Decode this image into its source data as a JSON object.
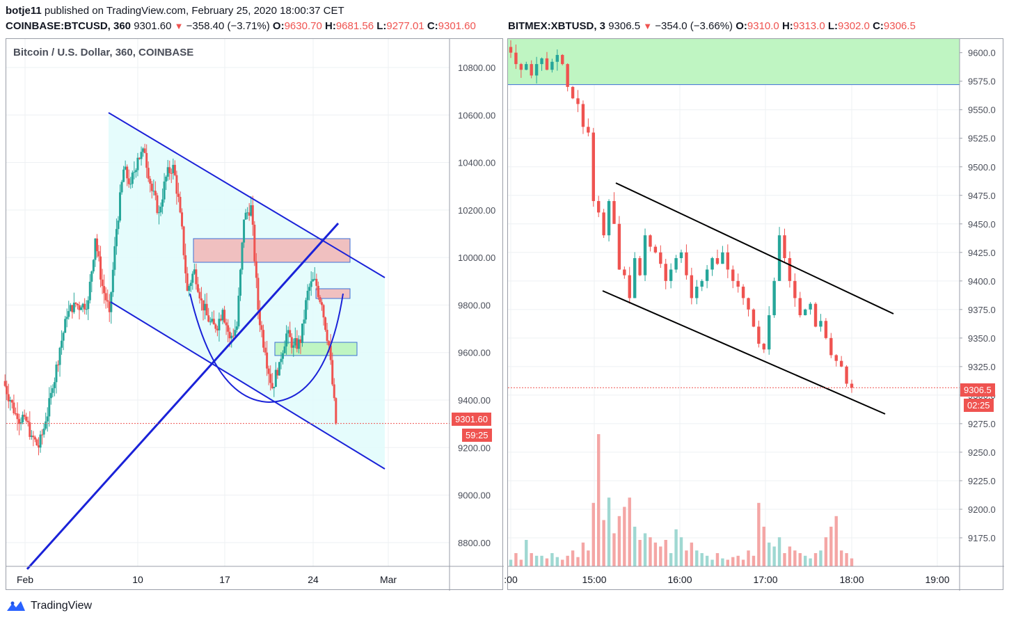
{
  "header": {
    "publisher": "botje11",
    "published_text": "published on TradingView.com, February 25, 2020 18:00:37 CET"
  },
  "left": {
    "symbol": "COINBASE:BTCUSD, 360",
    "last": "9301.60",
    "change": "−358.40 (−3.71%)",
    "o_label": "O:",
    "o": "9630.70",
    "h_label": "H:",
    "h": "9681.56",
    "l_label": "L:",
    "l": "9277.01",
    "c_label": "C:",
    "c": "9301.60",
    "title": "Bitcoin / U.S. Dollar, 360, COINBASE",
    "price_tag": "9301.60",
    "timer_tag": "59:25"
  },
  "right": {
    "symbol": "BITMEX:XBTUSD, 3",
    "last": "9306.5",
    "change": "−354.0 (−3.66%)",
    "o_label": "O:",
    "o": "9310.0",
    "h_label": "H:",
    "h": "9313.0",
    "l_label": "L:",
    "l": "9302.0",
    "c_label": "C:",
    "c": "9306.5",
    "price_tag": "9306.5",
    "timer_tag": "02:25"
  },
  "footer": {
    "brand": "TradingView"
  },
  "colors": {
    "up": "#26a69a",
    "down": "#ef5350",
    "trend": "#1a22d8",
    "zone_fill": "#e0fbfb"
  },
  "chart_data": [
    {
      "type": "candlestick",
      "title": "Bitcoin / U.S. Dollar, 360, COINBASE",
      "y_ticks": [
        "10800.00",
        "10600.00",
        "10400.00",
        "10200.00",
        "10000.00",
        "9800.00",
        "9600.00",
        "9400.00",
        "9200.00",
        "9000.00",
        "8800.00"
      ],
      "x_ticks": [
        "Feb",
        "10",
        "17",
        "24",
        "Mar"
      ],
      "ylim": [
        8700,
        10920
      ],
      "last_price": 9301.6,
      "candles_close_path": [
        9400,
        9320,
        9330,
        9250,
        9200,
        9310,
        9450,
        9620,
        9750,
        9810,
        9790,
        9820,
        10080,
        9880,
        9770,
        10120,
        10370,
        10310,
        10420,
        10440,
        10280,
        10190,
        10340,
        10390,
        10190,
        9860,
        9950,
        9820,
        9730,
        9700,
        9780,
        9660,
        9710,
        10160,
        10220,
        9780,
        9600,
        9450,
        9560,
        9680,
        9630,
        9640,
        9860,
        9910,
        9800,
        9630,
        9301.6
      ]
    },
    {
      "type": "candlestick",
      "y_ticks": [
        "9600.0",
        "9575.0",
        "9550.0",
        "9525.0",
        "9500.0",
        "9475.0",
        "9450.0",
        "9425.0",
        "9400.0",
        "9375.0",
        "9350.0",
        "9325.0",
        "9300.0",
        "9275.0",
        "9250.0",
        "9225.0",
        "9200.0",
        "9175.0"
      ],
      "x_ticks": [
        ":00",
        "15:00",
        "16:00",
        "17:00",
        "18:00",
        "19:00"
      ],
      "ylim": [
        9150,
        9612
      ],
      "last_price": 9306.5,
      "resistance_zone": [
        9572,
        9612
      ],
      "closes": [
        9600,
        9590,
        9585,
        9590,
        9580,
        9590,
        9595,
        9585,
        9592,
        9598,
        9590,
        9570,
        9560,
        9555,
        9535,
        9530,
        9470,
        9460,
        9440,
        9470,
        9450,
        9410,
        9405,
        9385,
        9420,
        9405,
        9440,
        9430,
        9425,
        9415,
        9400,
        9410,
        9420,
        9425,
        9405,
        9385,
        9395,
        9400,
        9410,
        9420,
        9415,
        9425,
        9410,
        9400,
        9395,
        9385,
        9375,
        9360,
        9345,
        9340,
        9370,
        9400,
        9440,
        9420,
        9400,
        9385,
        9370,
        9375,
        9380,
        9360,
        9365,
        9350,
        9335,
        9330,
        9325,
        9310,
        9306.5
      ],
      "volumes_relative": [
        0.05,
        0.1,
        0.05,
        0.2,
        0.1,
        0.08,
        0.08,
        0.06,
        0.1,
        0.07,
        0.05,
        0.08,
        0.12,
        0.07,
        0.18,
        0.12,
        0.48,
        1.0,
        0.35,
        0.52,
        0.25,
        0.38,
        0.45,
        0.52,
        0.3,
        0.2,
        0.25,
        0.22,
        0.18,
        0.15,
        0.2,
        0.1,
        0.28,
        0.22,
        0.12,
        0.18,
        0.12,
        0.1,
        0.08,
        0.05,
        0.1,
        0.06,
        0.05,
        0.07,
        0.08,
        0.05,
        0.12,
        0.08,
        0.48,
        0.3,
        0.18,
        0.15,
        0.22,
        0.1,
        0.15,
        0.12,
        0.1,
        0.08,
        0.06,
        0.1,
        0.12,
        0.22,
        0.3,
        0.38,
        0.12,
        0.1,
        0.06
      ]
    }
  ]
}
